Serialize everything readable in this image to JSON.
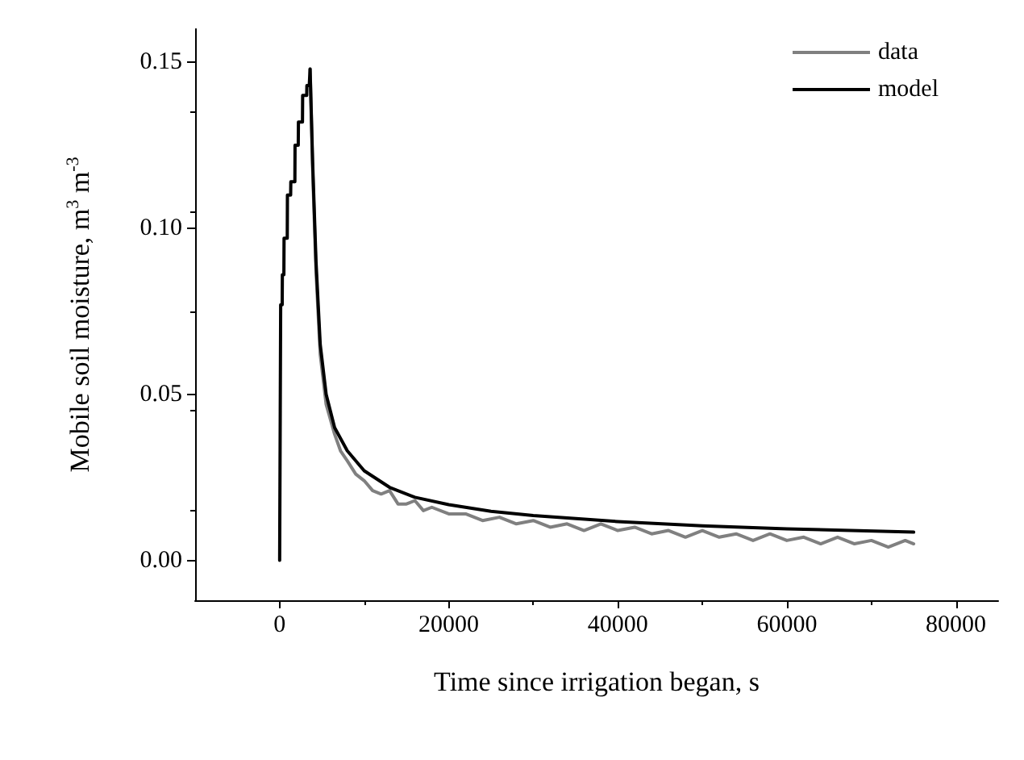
{
  "chart_data": {
    "type": "line",
    "xlabel": "Time since irrigation began, s",
    "ylabel": "Mobile soil moisture, m$^{3}$ m$^{-3}$",
    "xlim": [
      -10000,
      85000
    ],
    "xticks": [
      0,
      20000,
      40000,
      60000,
      80000
    ],
    "ylim": [
      -0.012,
      0.16
    ],
    "yticks": [
      {
        "value": 0,
        "label": "0.00"
      },
      {
        "value": 0.05,
        "label": "0.05"
      },
      {
        "value": 0.1,
        "label": "0.10"
      },
      {
        "value": 0.15,
        "label": "0.15"
      }
    ],
    "grid": false,
    "legend": "top right",
    "marker": "none",
    "line_style": "solid",
    "series": [
      {
        "name": "data",
        "color": "#808080",
        "x": [
          3600,
          3900,
          4300,
          4800,
          5500,
          6500,
          7200,
          8000,
          9000,
          10000,
          11000,
          12000,
          13000,
          14000,
          15000,
          16000,
          17000,
          18000,
          20000,
          22000,
          24000,
          26000,
          28000,
          30000,
          32000,
          34000,
          36000,
          38000,
          40000,
          42000,
          44000,
          46000,
          48000,
          50000,
          52000,
          54000,
          56000,
          58000,
          60000,
          62000,
          64000,
          66000,
          68000,
          70000,
          72000,
          74000,
          75000
        ],
        "values": [
          0.148,
          0.118,
          0.087,
          0.062,
          0.047,
          0.038,
          0.033,
          0.03,
          0.026,
          0.024,
          0.021,
          0.02,
          0.021,
          0.017,
          0.017,
          0.018,
          0.015,
          0.016,
          0.014,
          0.014,
          0.012,
          0.013,
          0.011,
          0.012,
          0.01,
          0.011,
          0.009,
          0.011,
          0.009,
          0.01,
          0.008,
          0.009,
          0.007,
          0.009,
          0.007,
          0.008,
          0.006,
          0.008,
          0.006,
          0.007,
          0.005,
          0.007,
          0.005,
          0.006,
          0.004,
          0.006,
          0.005
        ]
      },
      {
        "name": "model",
        "color": "#000000",
        "x": [
          0,
          100,
          120,
          300,
          320,
          500,
          520,
          900,
          920,
          1300,
          1320,
          1800,
          1820,
          2200,
          2220,
          2700,
          2720,
          3200,
          3220,
          3500,
          3600,
          3900,
          4300,
          4800,
          5500,
          6500,
          8000,
          10000,
          13000,
          16000,
          20000,
          25000,
          30000,
          40000,
          50000,
          60000,
          75000
        ],
        "values": [
          0,
          0,
          0.077,
          0.077,
          0.086,
          0.086,
          0.097,
          0.097,
          0.11,
          0.11,
          0.114,
          0.114,
          0.125,
          0.125,
          0.132,
          0.132,
          0.14,
          0.14,
          0.143,
          0.143,
          0.148,
          0.12,
          0.09,
          0.065,
          0.05,
          0.04,
          0.033,
          0.027,
          0.022,
          0.019,
          0.0168,
          0.0148,
          0.0135,
          0.0117,
          0.0104,
          0.0095,
          0.0085
        ]
      }
    ]
  }
}
